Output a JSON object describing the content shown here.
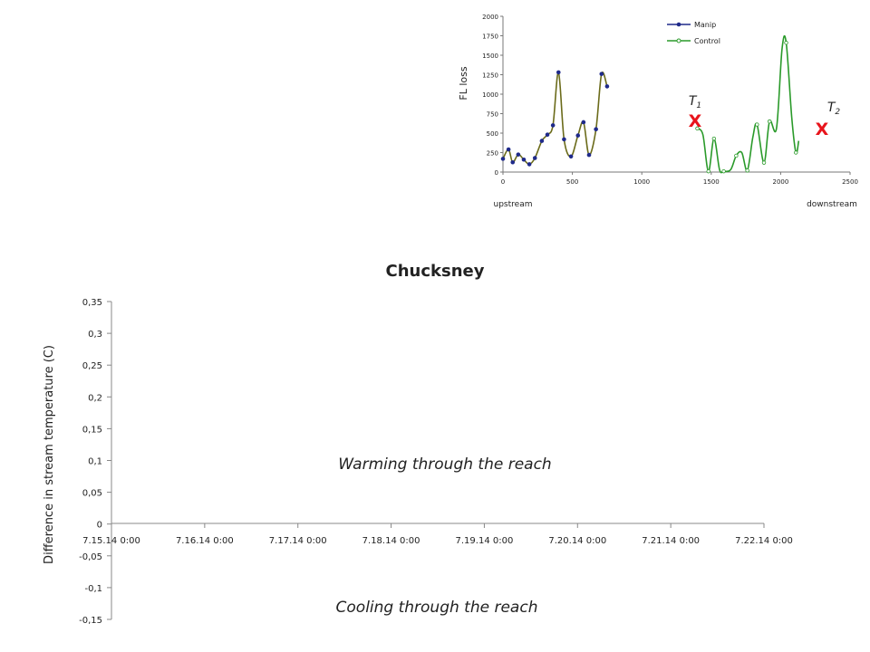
{
  "chart_data": [
    {
      "type": "line",
      "ylabel": "FL loss",
      "bottom_left_label": "upstream",
      "bottom_right_label": "downstream",
      "xlim": [
        0,
        2500
      ],
      "ylim": [
        0,
        2000
      ],
      "x_ticks": [
        "0",
        "500",
        "1000",
        "1500",
        "2000",
        "2500"
      ],
      "y_ticks": [
        "0",
        "250",
        "500",
        "750",
        "1000",
        "1250",
        "1500",
        "1750",
        "2000"
      ],
      "series": [
        {
          "name": "Manip",
          "color": "#6b6b1a",
          "marker_color": "#1f2a8a",
          "points": [
            [
              0,
              170
            ],
            [
              40,
              290
            ],
            [
              70,
              125
            ],
            [
              110,
              225
            ],
            [
              150,
              160
            ],
            [
              190,
              100
            ],
            [
              230,
              180
            ],
            [
              280,
              400
            ],
            [
              320,
              480
            ],
            [
              360,
              600
            ],
            [
              400,
              1280
            ],
            [
              440,
              420
            ],
            [
              490,
              200
            ],
            [
              540,
              470
            ],
            [
              580,
              640
            ],
            [
              620,
              220
            ],
            [
              670,
              550
            ],
            [
              710,
              1260
            ],
            [
              750,
              1100
            ]
          ],
          "markers": [
            [
              0,
              170
            ],
            [
              40,
              290
            ],
            [
              70,
              125
            ],
            [
              110,
              225
            ],
            [
              150,
              160
            ],
            [
              190,
              100
            ],
            [
              230,
              180
            ],
            [
              280,
              400
            ],
            [
              320,
              480
            ],
            [
              360,
              600
            ],
            [
              400,
              1280
            ],
            [
              440,
              420
            ],
            [
              490,
              200
            ],
            [
              540,
              470
            ],
            [
              580,
              640
            ],
            [
              620,
              220
            ],
            [
              670,
              550
            ],
            [
              710,
              1260
            ],
            [
              750,
              1100
            ]
          ]
        },
        {
          "name": "Control",
          "color": "#2a9a2a",
          "points": [
            [
              1400,
              560
            ],
            [
              1440,
              480
            ],
            [
              1480,
              10
            ],
            [
              1520,
              430
            ],
            [
              1560,
              30
            ],
            [
              1590,
              10
            ],
            [
              1640,
              30
            ],
            [
              1680,
              210
            ],
            [
              1720,
              250
            ],
            [
              1760,
              20
            ],
            [
              1800,
              450
            ],
            [
              1830,
              610
            ],
            [
              1880,
              120
            ],
            [
              1920,
              650
            ],
            [
              1970,
              560
            ],
            [
              2010,
              1580
            ],
            [
              2040,
              1660
            ],
            [
              2080,
              700
            ],
            [
              2110,
              250
            ],
            [
              2130,
              400
            ]
          ],
          "markers": [
            [
              1400,
              560
            ],
            [
              1480,
              10
            ],
            [
              1520,
              430
            ],
            [
              1590,
              10
            ],
            [
              1680,
              210
            ],
            [
              1760,
              20
            ],
            [
              1830,
              610
            ],
            [
              1880,
              120
            ],
            [
              1920,
              650
            ],
            [
              2040,
              1660
            ],
            [
              2110,
              250
            ]
          ]
        }
      ],
      "legend": [
        "Manip",
        "Control"
      ],
      "legend_position": "top-right",
      "markers": [
        {
          "label": "T",
          "sub": "1",
          "symbol": "X",
          "x": 1380,
          "color": "#e8141c"
        },
        {
          "label": "T",
          "sub": "2",
          "symbol": "X",
          "x": 2130,
          "color": "#e8141c"
        }
      ]
    },
    {
      "type": "line",
      "title": "Chucksney",
      "ylabel": "Difference in stream temperature (C)",
      "xlabel": "",
      "categories": [
        "7.15.14 0:00",
        "7.16.14 0:00",
        "7.17.14 0:00",
        "7.18.14 0:00",
        "7.19.14 0:00",
        "7.20.14 0:00",
        "7.21.14 0:00",
        "7.22.14 0:00"
      ],
      "y_ticks": [
        "0,35",
        "0,3",
        "0,25",
        "0,2",
        "0,15",
        "0,1",
        "0,05",
        "0",
        "-0,05",
        "-0,1",
        "-0,15"
      ],
      "ylim": [
        -0.15,
        0.35
      ],
      "series": [],
      "annotations": [
        "Warming through the reach",
        "Cooling through the reach"
      ]
    }
  ]
}
